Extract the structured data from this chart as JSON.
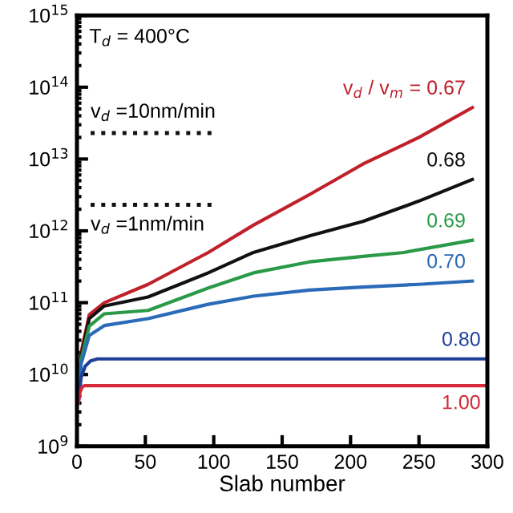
{
  "chart_data": {
    "type": "line",
    "xlabel": "Slab number",
    "log": "y",
    "xlim": [
      0,
      300
    ],
    "xticks": [
      0,
      50,
      100,
      150,
      200,
      250,
      300
    ],
    "ylim": [
      1000000000.0,
      1000000000000000.0
    ],
    "yticks": [
      {
        "value": 1000000000.0,
        "label": "10$^{9}$"
      },
      {
        "value": 10000000000.0,
        "label": "10$^{10}$"
      },
      {
        "value": 100000000000.0,
        "label": "10$^{11}$"
      },
      {
        "value": 1000000000000.0,
        "label": "10$^{12}$"
      },
      {
        "value": 10000000000000.0,
        "label": "10$^{13}$"
      },
      {
        "value": 100000000000000.0,
        "label": "10$^{14}$"
      },
      {
        "value": 1000000000000000.0,
        "label": "10$^{15}$"
      }
    ],
    "grid": false,
    "legend": false,
    "marker": "none",
    "line_style": "solid",
    "series": [
      {
        "name": "v$_{d}$ / v$_{m}$ = 0.67",
        "color": "#c0202a",
        "x": [
          1,
          3,
          9,
          20,
          52,
          96,
          129,
          170,
          209,
          250,
          289
        ],
        "values": [
          4000000000.0,
          20000000000.0,
          68000000000.0,
          100000000000.0,
          180000000000.0,
          500000000000.0,
          1200000000000.0,
          3200000000000.0,
          8500000000000.0,
          20000000000000.0,
          52000000000000.0
        ]
      },
      {
        "name": "0.68",
        "color": "#111111",
        "x": [
          1,
          3,
          9,
          20,
          52,
          96,
          129,
          170,
          209,
          250,
          289
        ],
        "values": [
          4000000000.0,
          18000000000.0,
          60000000000.0,
          90000000000.0,
          120000000000.0,
          260000000000.0,
          500000000000.0,
          850000000000.0,
          1350000000000.0,
          2600000000000.0,
          5200000000000.0
        ]
      },
      {
        "name": "0.69",
        "color": "#2a9a48",
        "x": [
          1,
          3,
          9,
          20,
          52,
          96,
          129,
          170,
          209,
          239,
          289
        ],
        "values": [
          4000000000.0,
          16000000000.0,
          47000000000.0,
          70000000000.0,
          78000000000.0,
          160000000000.0,
          260000000000.0,
          370000000000.0,
          440000000000.0,
          500000000000.0,
          740000000000.0
        ]
      },
      {
        "name": "0.70",
        "color": "#2a6ab8",
        "x": [
          1,
          3,
          9,
          20,
          52,
          96,
          129,
          170,
          209,
          250,
          289
        ],
        "values": [
          4000000000.0,
          14000000000.0,
          35000000000.0,
          48000000000.0,
          60000000000.0,
          95000000000.0,
          123000000000.0,
          150000000000.0,
          165000000000.0,
          180000000000.0,
          200000000000.0
        ]
      },
      {
        "name": "0.80",
        "color": "#1f3f99",
        "x": [
          1,
          3,
          6,
          10,
          15,
          30,
          100,
          200,
          300
        ],
        "values": [
          4000000000.0,
          9000000000.0,
          13000000000.0,
          15500000000.0,
          16500000000.0,
          16500000000.0,
          16500000000.0,
          16500000000.0,
          16500000000.0
        ]
      },
      {
        "name": "1.00",
        "color": "#d42a3a",
        "x": [
          1,
          2,
          4,
          6,
          10,
          100,
          200,
          300
        ],
        "values": [
          4000000000.0,
          5500000000.0,
          6800000000.0,
          7000000000.0,
          7000000000.0,
          7000000000.0,
          7000000000.0,
          7000000000.0
        ]
      },
      {
        "color": "#111111",
        "x": [
          10,
          100
        ],
        "values": [
          23000000000000.0,
          23000000000000.0
        ],
        "line_style": "dotted"
      },
      {
        "color": "#111111",
        "x": [
          10,
          100
        ],
        "values": [
          2300000000000.0,
          2300000000000.0
        ],
        "line_style": "dotted"
      }
    ],
    "annotations": [
      "T$_{d}$ = 400°C",
      "v$_{d}$ =10nm/min",
      "v$_{d}$ =1nm/min"
    ]
  }
}
